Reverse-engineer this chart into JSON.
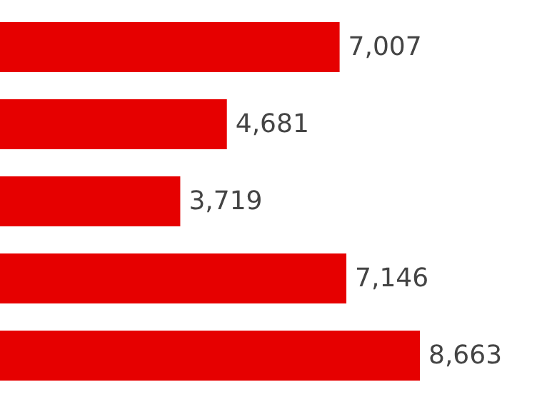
{
  "chart_data": {
    "type": "bar",
    "orientation": "horizontal",
    "categories": [
      null,
      null,
      null,
      null,
      null
    ],
    "values": [
      7007,
      4681,
      3719,
      7146,
      8663
    ],
    "value_labels": [
      "7,007",
      "4,681",
      "3,719",
      "7,146",
      "8,663"
    ],
    "color": "#e60000"
  }
}
